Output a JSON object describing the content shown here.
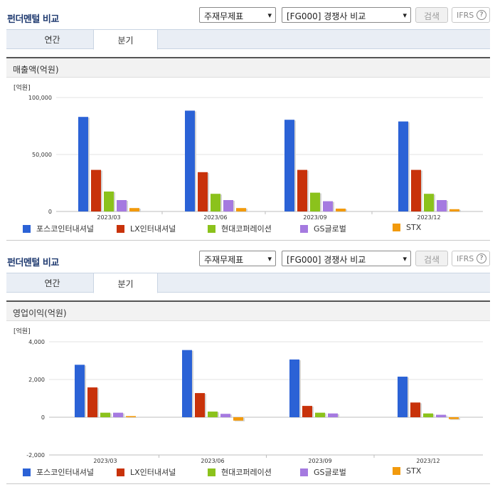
{
  "panels": [
    {
      "title": "펀더멘털 비교",
      "select1": "주재무제표",
      "select2": "[FG000] 경쟁사 비교",
      "search_label": "검색",
      "ifrs_label": "IFRS",
      "tabs": [
        {
          "label": "연간"
        },
        {
          "label": "분기"
        }
      ],
      "section_title": "매출액(억원)",
      "legend": [
        "포스코인터내셔널",
        "LX인터내셔널",
        "현대코퍼레이션",
        "GS글로벌",
        "STX"
      ]
    },
    {
      "title": "펀더멘털 비교",
      "select1": "주재무제표",
      "select2": "[FG000] 경쟁사 비교",
      "search_label": "검색",
      "ifrs_label": "IFRS",
      "tabs": [
        {
          "label": "연간"
        },
        {
          "label": "분기"
        }
      ],
      "section_title": "영업이익(억원)",
      "legend": [
        "포스코인터내셔널",
        "LX인터내셔널",
        "현대코퍼레이션",
        "GS글로벌",
        "STX"
      ]
    }
  ],
  "colors": [
    "#2b62d6",
    "#c8320a",
    "#8bc21c",
    "#a57ae0",
    "#f29a0c"
  ],
  "chart_data": [
    {
      "type": "bar",
      "unit_label": "[억원]",
      "categories": [
        "2023/03",
        "2023/06",
        "2023/09",
        "2023/12"
      ],
      "ylim": [
        0,
        100000
      ],
      "yticks": [
        0,
        50000,
        100000
      ],
      "ytick_labels": [
        "0",
        "50,000",
        "100,000"
      ],
      "grid": true,
      "series": [
        {
          "name": "포스코인터내셔널",
          "values": [
            83000,
            88500,
            80500,
            79000
          ]
        },
        {
          "name": "LX인터내셔널",
          "values": [
            36500,
            34500,
            36500,
            36500
          ]
        },
        {
          "name": "현대코퍼레이션",
          "values": [
            17500,
            15500,
            16500,
            15500
          ]
        },
        {
          "name": "GS글로벌",
          "values": [
            10000,
            10000,
            9000,
            10000
          ]
        },
        {
          "name": "STX",
          "values": [
            3000,
            3000,
            2500,
            2000
          ]
        }
      ]
    },
    {
      "type": "bar",
      "unit_label": "[억원]",
      "categories": [
        "2023/03",
        "2023/06",
        "2023/09",
        "2023/12"
      ],
      "ylim": [
        -2000,
        4000
      ],
      "yticks": [
        -2000,
        0,
        2000,
        4000
      ],
      "ytick_labels": [
        "-2,000",
        "0",
        "2,000",
        "4,000"
      ],
      "grid": true,
      "series": [
        {
          "name": "포스코인터내셔널",
          "values": [
            2780,
            3560,
            3060,
            2150
          ]
        },
        {
          "name": "LX인터내셔널",
          "values": [
            1580,
            1280,
            600,
            780
          ]
        },
        {
          "name": "현대코퍼레이션",
          "values": [
            240,
            300,
            240,
            200
          ]
        },
        {
          "name": "GS글로벌",
          "values": [
            240,
            180,
            200,
            130
          ]
        },
        {
          "name": "STX",
          "values": [
            60,
            -180,
            0,
            -100
          ]
        }
      ]
    }
  ]
}
